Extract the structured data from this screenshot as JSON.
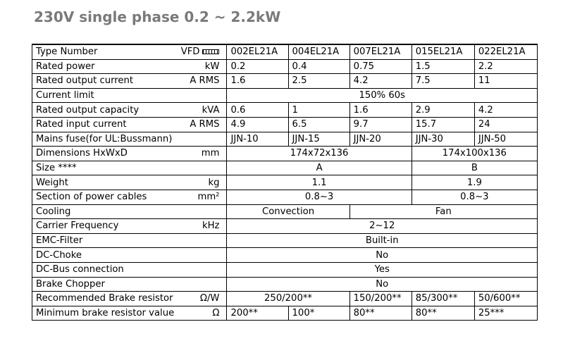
{
  "title": "230V single phase 0.2 ~ 2.2kW",
  "header": {
    "label": "Type Number",
    "unit": "VFD",
    "icon": "vfd-model-placeholder-icon",
    "models": [
      "002EL21A",
      "004EL21A",
      "007EL21A",
      "015EL21A",
      "022EL21A"
    ]
  },
  "rows": {
    "rated_power": {
      "label": "Rated power",
      "unit": "kW",
      "values": [
        "0.2",
        "0.4",
        "0.75",
        "1.5",
        "2.2"
      ]
    },
    "rated_output_current": {
      "label": "Rated output current",
      "unit": "A RMS",
      "values": [
        "1.6",
        "2.5",
        "4.2",
        "7.5",
        "11"
      ]
    },
    "current_limit": {
      "label": "Current limit",
      "unit": "",
      "value": "150% 60s"
    },
    "rated_output_capacity": {
      "label": "Rated output capacity",
      "unit": "kVA",
      "values": [
        "0.6",
        "1",
        "1.6",
        "2.9",
        "4.2"
      ]
    },
    "rated_input_current": {
      "label": "Rated input current",
      "unit": "A RMS",
      "values": [
        "4.9",
        "6.5",
        "9.7",
        "15.7",
        "24"
      ]
    },
    "mains_fuse": {
      "label": "Mains fuse(for UL:Bussmann)",
      "unit": "",
      "values": [
        "JJN-10",
        "JJN-15",
        "JJN-20",
        "JJN-30",
        "JJN-50"
      ]
    },
    "dimensions": {
      "label": "Dimensions HxWxD",
      "unit": "mm",
      "values": [
        "174x72x136",
        "174x100x136"
      ]
    },
    "size": {
      "label": "Size ****",
      "unit": "",
      "values": [
        "A",
        "B"
      ]
    },
    "weight": {
      "label": "Weight",
      "unit": "kg",
      "values": [
        "1.1",
        "1.9"
      ]
    },
    "power_cables": {
      "label": "Section of power cables",
      "unit": "mm²",
      "values": [
        "0.8~3",
        "0.8~3"
      ]
    },
    "cooling": {
      "label": "Cooling",
      "unit": "",
      "values": [
        "Convection",
        "Fan"
      ]
    },
    "carrier_frequency": {
      "label": "Carrier Frequency",
      "unit": "kHz",
      "value": "2~12"
    },
    "emc_filter": {
      "label": "EMC-Filter",
      "unit": "",
      "value": "Built-in"
    },
    "dc_choke": {
      "label": "DC-Choke",
      "unit": "",
      "value": "No"
    },
    "dc_bus": {
      "label": "DC-Bus connection",
      "unit": "",
      "value": "Yes"
    },
    "brake_chopper": {
      "label": "Brake Chopper",
      "unit": "",
      "value": "No"
    },
    "brake_resistor": {
      "label": "Recommended Brake resistor",
      "unit": "Ω/W",
      "values": [
        "250/200**",
        "150/200**",
        "85/300**",
        "50/600**"
      ]
    },
    "min_brake_resistor": {
      "label": "Minimum brake resistor value",
      "unit": "Ω",
      "values": [
        "200**",
        "100*",
        "80**",
        "80**",
        "25***"
      ]
    }
  }
}
